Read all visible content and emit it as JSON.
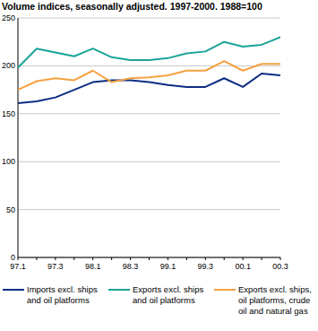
{
  "chart_data": {
    "type": "line",
    "title": "Volume indices, seasonally adjusted. 1997-2000. 1988=100",
    "categories": [
      "97.1",
      null,
      "97.3",
      null,
      "98.1",
      null,
      "98.3",
      null,
      "99.1",
      null,
      "99.3",
      null,
      "00.1",
      null,
      "00.3"
    ],
    "series": [
      {
        "name": "Imports excl. ships and oil platforms",
        "color": "#0c2d83",
        "values": [
          161,
          163,
          167,
          175,
          183,
          185,
          185,
          183,
          180,
          178,
          178,
          187,
          178,
          192,
          190
        ]
      },
      {
        "name": "Exports excl. ships and oil platforms",
        "color": "#1aa39a",
        "values": [
          198,
          218,
          214,
          210,
          218,
          209,
          206,
          206,
          208,
          213,
          215,
          225,
          220,
          222,
          230
        ]
      },
      {
        "name": "Exports excl. ships, oil platforms, crude oil and natural gas",
        "color": "#f5a142",
        "values": [
          175,
          184,
          187,
          185,
          195,
          183,
          187,
          188,
          190,
          195,
          195,
          205,
          195,
          202,
          202
        ]
      }
    ],
    "ylim": [
      0,
      250
    ],
    "yticks": [
      0,
      50,
      100,
      150,
      200,
      250
    ],
    "grid": true,
    "legend": "bottom"
  }
}
